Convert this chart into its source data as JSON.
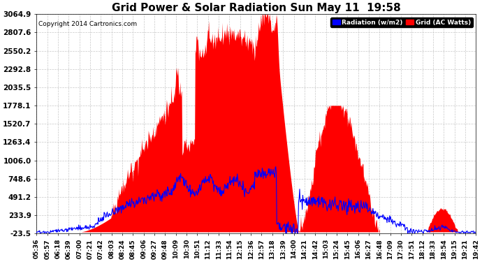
{
  "title": "Grid Power & Solar Radiation Sun May 11  19:58",
  "copyright": "Copyright 2014 Cartronics.com",
  "background_color": "#ffffff",
  "plot_bg_color": "#ffffff",
  "yticks": [
    3064.9,
    2807.6,
    2550.2,
    2292.8,
    2035.5,
    1778.1,
    1520.7,
    1263.4,
    1006.0,
    748.6,
    491.2,
    233.9,
    -23.5
  ],
  "ymin": -23.5,
  "ymax": 3064.9,
  "grid_color": "#c8c8c8",
  "legend_radiation_label": "Radiation (w/m2)",
  "legend_grid_label": "Grid (AC Watts)",
  "radiation_color": "#ff0000",
  "grid_line_color": "#0000ff",
  "title_fontsize": 11,
  "xtick_fontsize": 6.5,
  "ytick_fontsize": 7.5,
  "x_labels": [
    "05:36",
    "05:57",
    "06:18",
    "06:39",
    "07:00",
    "07:21",
    "07:42",
    "08:03",
    "08:24",
    "08:45",
    "09:06",
    "09:27",
    "09:48",
    "10:09",
    "10:30",
    "10:51",
    "11:12",
    "11:33",
    "11:54",
    "12:15",
    "12:36",
    "12:57",
    "13:18",
    "13:39",
    "14:00",
    "14:21",
    "14:42",
    "15:03",
    "15:24",
    "15:45",
    "16:06",
    "16:27",
    "16:48",
    "17:09",
    "17:30",
    "17:51",
    "18:12",
    "18:33",
    "18:54",
    "19:15",
    "19:21",
    "19:42"
  ]
}
